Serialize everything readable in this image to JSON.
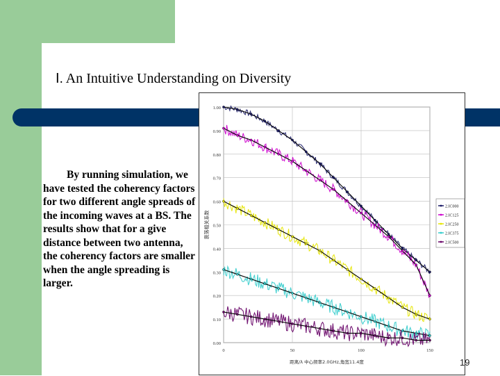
{
  "slide": {
    "title_numeral": "Ⅰ.",
    "title_text": "An Intuitive Understanding on Diversity",
    "body": "By running simulation, we have tested the coherency factors for two different angle spreads of the incoming waves at a BS. The results show that for a give distance between two antenna, the coherency factors are smaller when the angle spreading is larger.",
    "page_number": "19",
    "colors": {
      "green": "#99cc99",
      "navy": "#003366"
    }
  },
  "chart_data": {
    "type": "line",
    "title": "",
    "xlabel": "距离/λ 中心频率2.0GHz,角宽11.4度",
    "ylabel": "衰落相关系数",
    "xlim": [
      0,
      150
    ],
    "ylim": [
      0,
      1
    ],
    "x_ticks": [
      "0",
      "50",
      "100",
      "150"
    ],
    "y_ticks": [
      "0.00",
      "0.10",
      "0.20",
      "0.30",
      "0.40",
      "0.50",
      "0.60",
      "0.70",
      "0.80",
      "0.90",
      "1.00"
    ],
    "grid": true,
    "legend_position": "right",
    "x": [
      0,
      10,
      20,
      30,
      40,
      50,
      60,
      70,
      80,
      90,
      100,
      110,
      120,
      130,
      140,
      150
    ],
    "series": [
      {
        "name": "2.IC000",
        "color": "#1a1a66",
        "values": [
          1.0,
          0.99,
          0.97,
          0.94,
          0.9,
          0.86,
          0.81,
          0.76,
          0.7,
          0.64,
          0.58,
          0.52,
          0.46,
          0.4,
          0.35,
          0.3
        ]
      },
      {
        "name": "2.IC125",
        "color": "#cc00cc",
        "values": [
          0.91,
          0.88,
          0.86,
          0.83,
          0.8,
          0.77,
          0.73,
          0.69,
          0.65,
          0.6,
          0.55,
          0.5,
          0.45,
          0.39,
          0.33,
          0.2
        ]
      },
      {
        "name": "2.IC250",
        "color": "#e6e600",
        "values": [
          0.6,
          0.57,
          0.54,
          0.51,
          0.48,
          0.45,
          0.42,
          0.39,
          0.35,
          0.31,
          0.27,
          0.23,
          0.19,
          0.15,
          0.12,
          0.1
        ]
      },
      {
        "name": "2.IC375",
        "color": "#33cccc",
        "values": [
          0.31,
          0.29,
          0.27,
          0.25,
          0.23,
          0.21,
          0.19,
          0.17,
          0.15,
          0.13,
          0.11,
          0.09,
          0.07,
          0.05,
          0.04,
          0.03
        ]
      },
      {
        "name": "2.IC500",
        "color": "#660066",
        "values": [
          0.13,
          0.12,
          0.11,
          0.1,
          0.09,
          0.08,
          0.07,
          0.06,
          0.05,
          0.04,
          0.04,
          0.03,
          0.02,
          0.02,
          0.01,
          0.01
        ]
      }
    ]
  }
}
